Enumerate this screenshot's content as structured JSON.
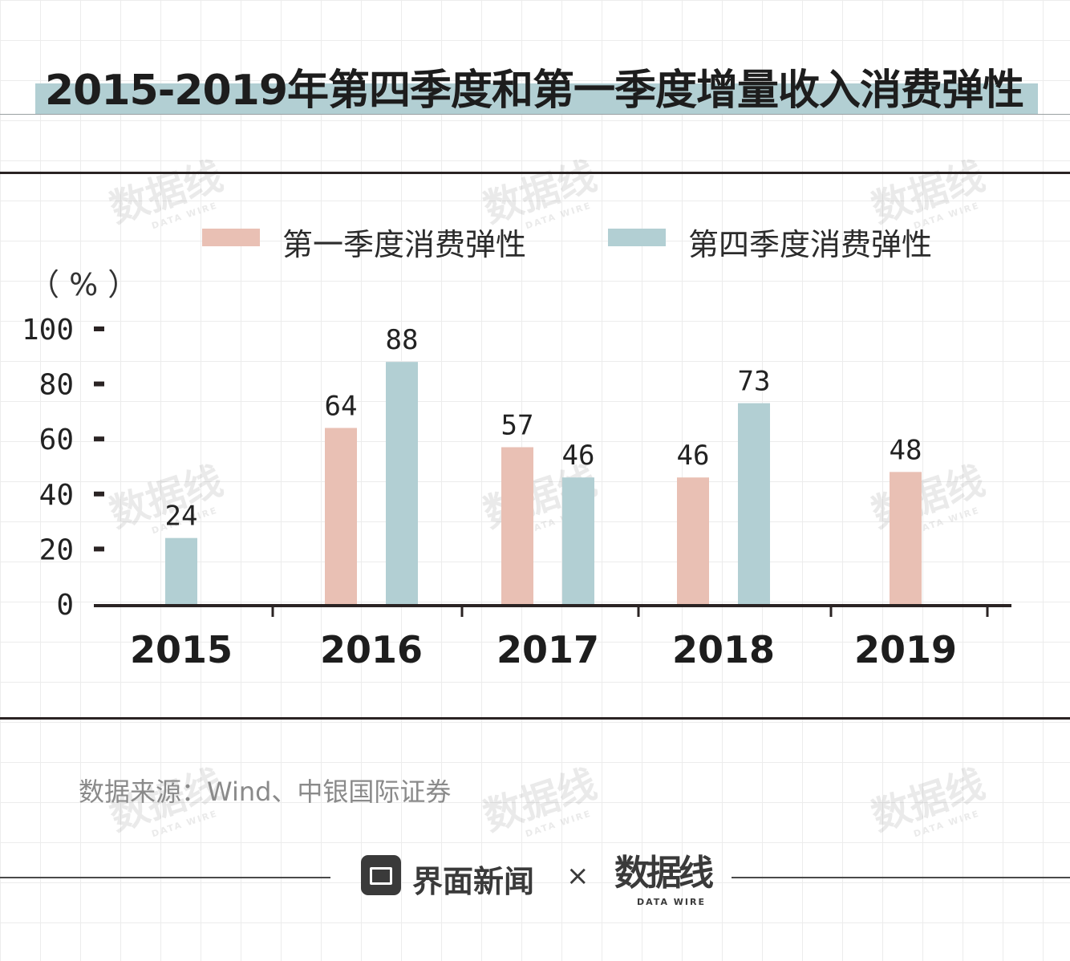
{
  "title": "2015-2019年第四季度和第一季度增量收入消费弹性",
  "unit": "（ % ）",
  "source": "数据来源：Wind、中银国际证券",
  "footer": {
    "brand": "界面新闻",
    "separator": "×",
    "partner_cn": "数据线",
    "partner_en": "DATA WIRE"
  },
  "watermark": {
    "cn": "数据线",
    "en": "DATA WIRE"
  },
  "colors": {
    "q1": "#e9c0b4",
    "q4": "#b2cfd3",
    "axis": "#2a2323",
    "title_band": "#b2cfd3"
  },
  "chart_data": {
    "type": "bar",
    "title": "2015-2019年第四季度和第一季度增量收入消费弹性",
    "categories": [
      "2015",
      "2016",
      "2017",
      "2018",
      "2019"
    ],
    "series": [
      {
        "name": "第一季度消费弹性",
        "color": "#e9c0b4",
        "values": [
          null,
          64,
          57,
          46,
          48
        ]
      },
      {
        "name": "第四季度消费弹性",
        "color": "#b2cfd3",
        "values": [
          24,
          88,
          46,
          73,
          null
        ]
      }
    ],
    "y_ticks": [
      0,
      20,
      40,
      60,
      80,
      100
    ],
    "ylim": [
      0,
      100
    ],
    "ylabel": "（ % ）",
    "legend": "top",
    "grid": false
  }
}
